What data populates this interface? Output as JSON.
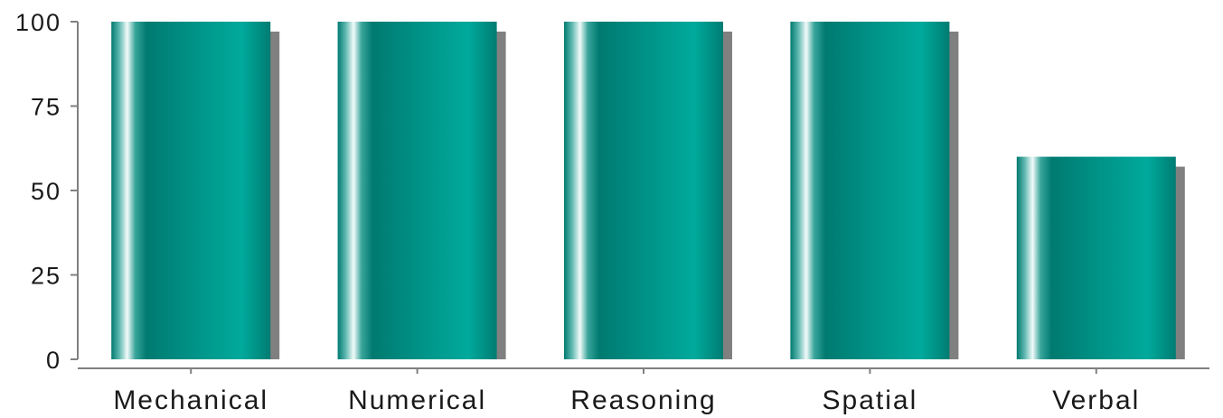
{
  "chart_data": {
    "type": "bar",
    "categories": [
      "Mechanical",
      "Numerical",
      "Reasoning",
      "Spatial",
      "Verbal"
    ],
    "values": [
      100,
      100,
      100,
      100,
      60
    ],
    "ylim": [
      0,
      100
    ],
    "yticks": [
      0,
      25,
      50,
      75,
      100
    ],
    "ytick_labels": [
      "0",
      "25",
      "50",
      "75",
      "100"
    ],
    "grid": false,
    "legend": "none",
    "colors": {
      "bar_dark": "#007a70",
      "bar_light": "#00aa9c",
      "bar_highlight": "#f2fbfa",
      "shadow": "#808080",
      "axis": "#808080",
      "text": "#1a1a1a"
    }
  }
}
